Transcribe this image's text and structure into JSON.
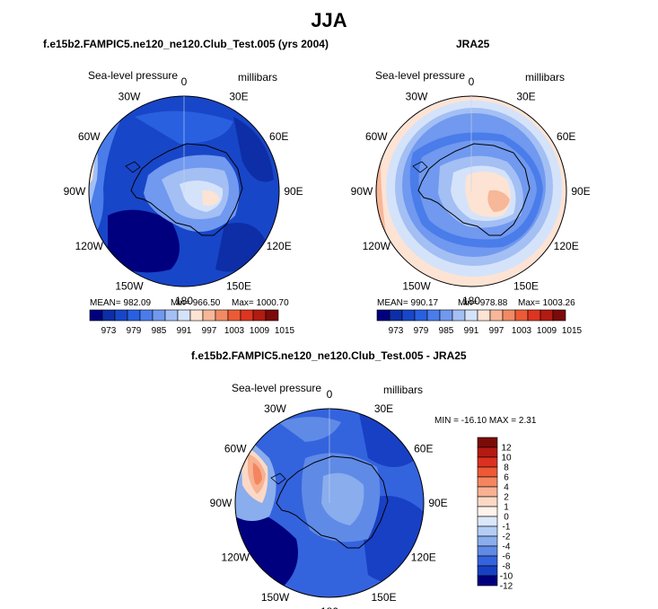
{
  "season": "JJA",
  "panels": [
    {
      "id": "model",
      "title": "f.e15b2.FAMPIC5.ne120_ne120.Club_Test.005 (yrs 2004)",
      "variable": "Sea-level pressure",
      "units": "millibars",
      "mean_text": "MEAN= 982.09",
      "min_text": "Min= 966.50",
      "max_text": "Max= 1000.70",
      "colorbar_labels": [
        "973",
        "979",
        "985",
        "991",
        "997",
        "1003",
        "1009",
        "1015"
      ]
    },
    {
      "id": "obs",
      "title": "JRA25",
      "variable": "Sea-level pressure",
      "units": "millibars",
      "mean_text": "MEAN= 990.17",
      "min_text": "Min= 978.88",
      "max_text": "Max= 1003.26",
      "colorbar_labels": [
        "973",
        "979",
        "985",
        "991",
        "997",
        "1003",
        "1009",
        "1015"
      ]
    },
    {
      "id": "diff",
      "title": "f.e15b2.FAMPIC5.ne120_ne120.Club_Test.005 - JRA25",
      "variable": "Sea-level pressure",
      "units": "millibars",
      "minmax_text": "MIN = -16.10  MAX =   2.31",
      "colorbar_labels": [
        "12",
        "10",
        "8",
        "6",
        "4",
        "2",
        "1",
        "0",
        "-1",
        "-2",
        "-4",
        "-6",
        "-8",
        "-10",
        "-12"
      ]
    }
  ],
  "longitude_labels": [
    "0",
    "30E",
    "60E",
    "90E",
    "120E",
    "150E",
    "180",
    "150W",
    "120W",
    "90W",
    "60W",
    "30W"
  ],
  "colors": {
    "abs_scale": [
      "#00007f",
      "#0d2ea6",
      "#1846c8",
      "#2860e0",
      "#4a7cea",
      "#7099ef",
      "#a3bff4",
      "#d4e3fa",
      "#fde3d4",
      "#f7b799",
      "#f28a64",
      "#ec5b35",
      "#dc3520",
      "#b21b12",
      "#7a0b08"
    ],
    "diff_scale": [
      "#7a0b08",
      "#b31a12",
      "#dc3120",
      "#ee5836",
      "#f4865f",
      "#f7b193",
      "#fbd9c6",
      "#fff3ec",
      "#dbe8fb",
      "#b3cdf5",
      "#89aded",
      "#5f8ae6",
      "#3463de",
      "#1840c4",
      "#00007f"
    ]
  }
}
